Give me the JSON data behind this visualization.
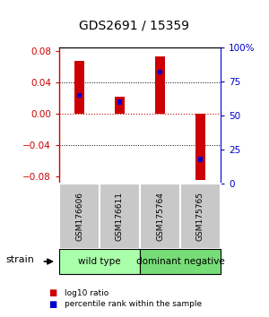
{
  "title": "GDS2691 / 15359",
  "samples": [
    "GSM176606",
    "GSM176611",
    "GSM175764",
    "GSM175765"
  ],
  "log10_ratio": [
    0.068,
    0.022,
    0.074,
    -0.085
  ],
  "percentile_rank": [
    0.65,
    0.6,
    0.82,
    0.18
  ],
  "ylim": [
    -0.09,
    0.085
  ],
  "yticks_left": [
    -0.08,
    -0.04,
    0,
    0.04,
    0.08
  ],
  "yticks_right": [
    0,
    25,
    50,
    75,
    100
  ],
  "groups": [
    {
      "label": "wild type",
      "color": "#aaffaa",
      "start": 0,
      "end": 2
    },
    {
      "label": "dominant negative",
      "color": "#77dd77",
      "start": 2,
      "end": 4
    }
  ],
  "red_color": "#cc0000",
  "blue_color": "#0000cc",
  "left_axis_color": "#cc0000",
  "right_axis_color": "#0000cc",
  "zero_line_color": "#cc0000",
  "bg_color": "#ffffff",
  "sample_box_color": "#c8c8c8",
  "bar_width": 0.25,
  "blue_bar_width": 0.13,
  "blue_bar_height": 0.006
}
